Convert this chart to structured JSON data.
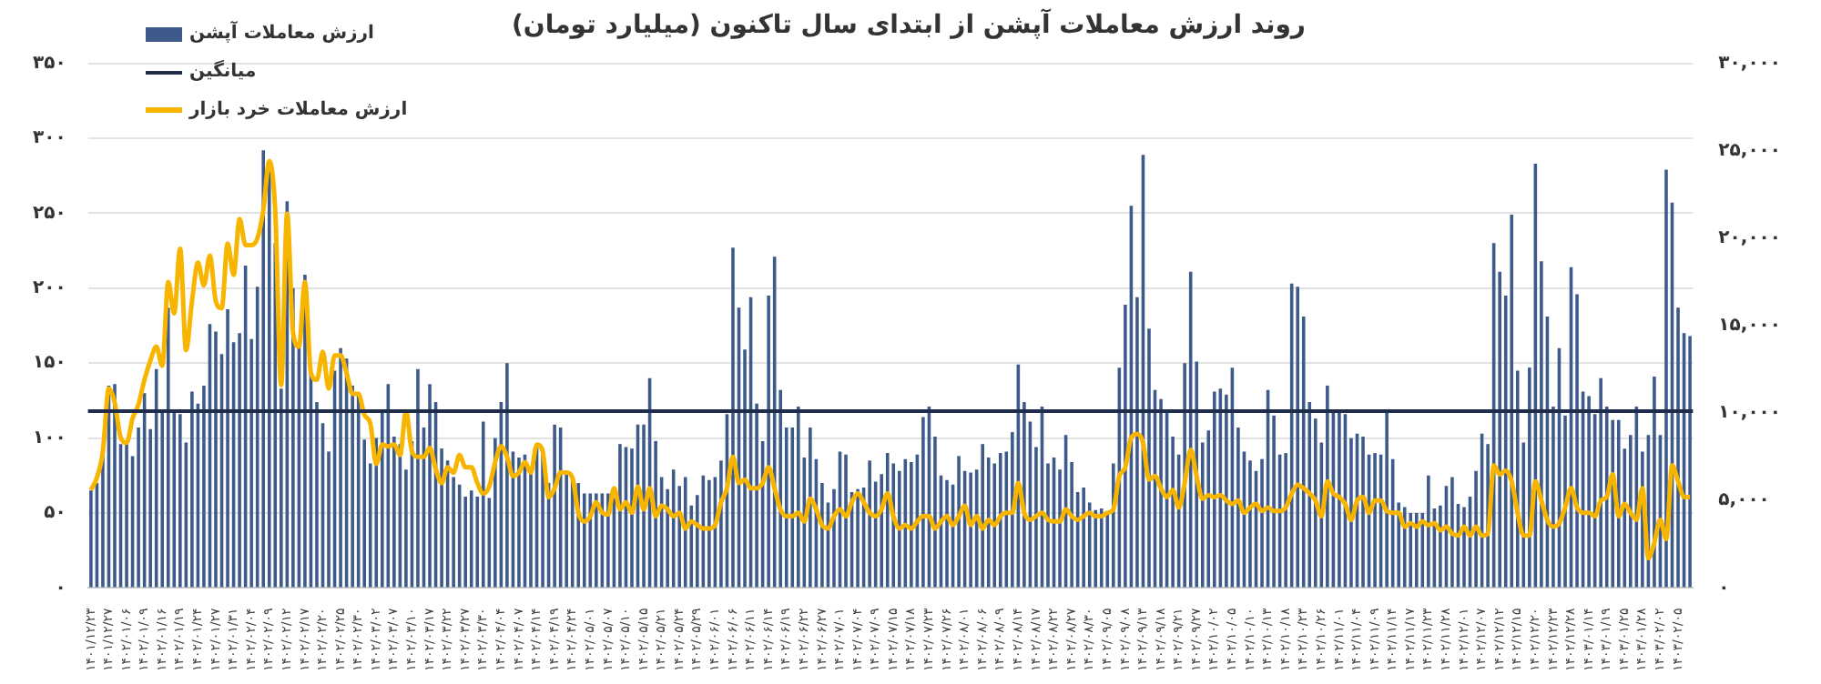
{
  "chart_data": {
    "type": "bar",
    "title": "روند ارزش معاملات آپشن از ابتدای سال تاکنون (میلیارد تومان)",
    "categories": [
      "۱۴۰۱/۱۲/۲۳",
      null,
      null,
      "۱۴۰۱/۱۲/۲۷",
      null,
      null,
      "۱۴۰۲/۰۱/۰۶",
      null,
      null,
      "۱۴۰۲/۰۱/۰۹",
      null,
      null,
      "۱۴۰۲/۰۱/۱۶",
      null,
      null,
      "۱۴۰۲/۰۱/۱۹",
      null,
      null,
      "۱۴۰۲/۰۱/۲۴",
      null,
      null,
      "۱۴۰۲/۰۱/۲۷",
      null,
      null,
      "۱۴۰۲/۰۱/۳۱",
      null,
      null,
      "۱۴۰۲/۰۲/۰۴",
      null,
      null,
      "۱۴۰۲/۰۲/۰۹",
      null,
      null,
      "۱۴۰۲/۰۲/۱۲",
      null,
      null,
      "۱۴۰۲/۰۲/۱۷",
      null,
      null,
      "۱۴۰۲/۰۲/۲۰",
      null,
      null,
      "۱۴۰۲/۰۲/۲۵",
      null,
      null,
      "۱۴۰۲/۰۲/۳۰",
      null,
      null,
      "۱۴۰۲/۰۳/۰۲",
      null,
      null,
      "۱۴۰۲/۰۳/۰۷",
      null,
      null,
      "۱۴۰۲/۰۳/۱۰",
      null,
      null,
      "۱۴۰۲/۰۳/۱۷",
      null,
      null,
      "۱۴۰۲/۰۳/۲۲",
      null,
      null,
      "۱۴۰۲/۰۳/۲۷",
      null,
      null,
      "۱۴۰۲/۰۳/۳۰",
      null,
      null,
      "۱۴۰۲/۰۴/۰۴",
      null,
      null,
      "۱۴۰۲/۰۴/۰۷",
      null,
      null,
      "۱۴۰۲/۰۴/۱۴",
      null,
      null,
      "۱۴۰۲/۰۴/۱۹",
      null,
      null,
      "۱۴۰۲/۰۴/۲۴",
      null,
      null,
      "۱۴۰۲/۰۵/۰۱",
      null,
      null,
      "۱۴۰۲/۰۵/۰۷",
      null,
      null,
      "۱۴۰۲/۰۵/۱۰",
      null,
      null,
      "۱۴۰۲/۰۵/۱۵",
      null,
      null,
      "۱۴۰۲/۰۵/۲۱",
      null,
      null,
      "۱۴۰۲/۰۵/۲۴",
      null,
      null,
      "۱۴۰۲/۰۵/۲۹",
      null,
      null,
      "۱۴۰۲/۰۶/۰۱",
      null,
      null,
      "۱۴۰۲/۰۶/۰۶",
      null,
      null,
      "۱۴۰۲/۰۶/۱۱",
      null,
      null,
      "۱۴۰۲/۰۶/۱۴",
      null,
      null,
      "۱۴۰۲/۰۶/۱۹",
      null,
      null,
      "۱۴۰۲/۰۶/۲۲",
      null,
      null,
      "۱۴۰۲/۰۶/۲۷",
      null,
      null,
      "۱۴۰۲/۰۷/۰۱",
      null,
      null,
      "۱۴۰۲/۰۷/۰۴",
      null,
      null,
      "۱۴۰۲/۰۷/۰۹",
      null,
      null,
      "۱۴۰۲/۰۷/۱۵",
      null,
      null,
      "۱۴۰۲/۰۷/۱۸",
      null,
      null,
      "۱۴۰۲/۰۷/۲۳",
      null,
      null,
      "۱۴۰۲/۰۷/۲۶",
      null,
      null,
      "۱۴۰۲/۰۸/۰۱",
      null,
      null,
      "۱۴۰۲/۰۸/۰۶",
      null,
      null,
      "۱۴۰۲/۰۸/۰۹",
      null,
      null,
      "۱۴۰۲/۰۸/۱۴",
      null,
      null,
      "۱۴۰۲/۰۸/۱۷",
      null,
      null,
      "۱۴۰۲/۰۸/۲۲",
      null,
      null,
      "۱۴۰۲/۰۸/۲۷",
      null,
      null,
      "۱۴۰۲/۰۸/۳۰",
      null,
      null,
      "۱۴۰۲/۰۹/۰۵",
      null,
      null,
      "۱۴۰۲/۰۹/۰۸",
      null,
      null,
      "۱۴۰۲/۰۹/۱۳",
      null,
      null,
      "۱۴۰۲/۰۹/۱۸",
      null,
      null,
      "۱۴۰۲/۰۹/۲۱",
      null,
      null,
      "۱۴۰۲/۰۹/۲۷",
      null,
      null,
      "۱۴۰۲/۱۰/۰۲",
      null,
      null,
      "۱۴۰۲/۱۰/۰۵",
      null,
      null,
      "۱۴۰۲/۱۰/۱۰",
      null,
      null,
      "۱۴۰۲/۱۰/۱۳",
      null,
      null,
      "۱۴۰۲/۱۰/۱۸",
      null,
      null,
      "۱۴۰۲/۱۰/۲۳",
      null,
      null,
      "۱۴۰۲/۱۰/۲۶",
      null,
      null,
      "۱۴۰۲/۱۱/۰۱",
      null,
      null,
      "۱۴۰۲/۱۱/۰۴",
      null,
      null,
      "۱۴۰۲/۱۱/۰۹",
      null,
      null,
      "۱۴۰۲/۱۱/۱۴",
      null,
      null,
      "۱۴۰۲/۱۱/۱۷",
      null,
      null,
      "۱۴۰۲/۱۱/۲۳",
      null,
      null,
      "۱۴۰۲/۱۱/۲۸",
      null,
      null,
      "۱۴۰۲/۱۲/۰۱",
      null,
      null,
      "۱۴۰۲/۱۲/۰۷",
      null,
      null,
      "۱۴۰۲/۱۲/۱۲",
      null,
      null,
      "۱۴۰۲/۱۲/۱۵",
      null,
      null,
      "۱۴۰۲/۱۲/۲۰",
      null,
      null,
      "۱۴۰۲/۱۲/۲۳",
      null,
      null,
      "۱۴۰۲/۱۲/۲۸",
      null,
      null,
      "۱۴۰۳/۰۱/۱۴",
      null,
      null,
      "۱۴۰۳/۰۱/۱۹",
      null,
      null,
      "۱۴۰۳/۰۱/۲۵",
      null,
      null,
      "۱۴۰۳/۰۱/۲۸",
      null,
      null,
      "۱۴۰۳/۰۲/۰۲",
      null,
      null,
      "۱۴۰۳/۰۲/۰۵",
      null,
      null
    ],
    "series": [
      {
        "name": "ارزش معاملات آپشن",
        "color": "#3d5a8a",
        "values": [
          65,
          70,
          91,
          135,
          136,
          96,
          96,
          88,
          107,
          130,
          106,
          146,
          118,
          187,
          117,
          116,
          97,
          131,
          123,
          135,
          176,
          171,
          156,
          186,
          164,
          170,
          215,
          166,
          201,
          292,
          278,
          230,
          133,
          258,
          200,
          163,
          209,
          143,
          124,
          110,
          91,
          145,
          160,
          153,
          135,
          130,
          99,
          83,
          100,
          117,
          136,
          101,
          96,
          79,
          98,
          146,
          107,
          136,
          124,
          93,
          85,
          74,
          69,
          61,
          65,
          61,
          111,
          60,
          100,
          124,
          150,
          91,
          87,
          89,
          78,
          96,
          93,
          70,
          109,
          107,
          78,
          74,
          70,
          63,
          63,
          63,
          63,
          63,
          60,
          96,
          94,
          93,
          109,
          109,
          140,
          98,
          74,
          66,
          79,
          68,
          74,
          55,
          62,
          75,
          72,
          74,
          85,
          116,
          227,
          187,
          159,
          194,
          123,
          98,
          195,
          221,
          132,
          107,
          107,
          121,
          87,
          107,
          86,
          70,
          57,
          66,
          91,
          89,
          64,
          66,
          67,
          85,
          71,
          76,
          90,
          83,
          78,
          86,
          84,
          89,
          114,
          121,
          101,
          75,
          72,
          69,
          88,
          78,
          77,
          79,
          96,
          87,
          83,
          90,
          91,
          104,
          149,
          124,
          111,
          94,
          121,
          83,
          87,
          79,
          102,
          84,
          64,
          67,
          57,
          52,
          53,
          49,
          83,
          147,
          189,
          255,
          194,
          289,
          173,
          132,
          126,
          118,
          101,
          89,
          150,
          211,
          151,
          97,
          105,
          131,
          133,
          129,
          147,
          107,
          91,
          85,
          78,
          86,
          132,
          115,
          89,
          90,
          203,
          201,
          181,
          124,
          113,
          97,
          135,
          118,
          118,
          116,
          100,
          103,
          101,
          89,
          90,
          89,
          118,
          86,
          57,
          54,
          50,
          50,
          50,
          75,
          53,
          55,
          68,
          74,
          56,
          54,
          61,
          78,
          103,
          96,
          230,
          211,
          195,
          249,
          145,
          97,
          147,
          283,
          218,
          181,
          121,
          160,
          115,
          214,
          196,
          131,
          128,
          116,
          140,
          121,
          112,
          112,
          93,
          102,
          121,
          91,
          102,
          141,
          102,
          279,
          257,
          187,
          170,
          168
        ]
      },
      {
        "name": "ارزش معاملات خرد بازار",
        "type": "line",
        "axis": "y2",
        "color": "#f7b500",
        "values": [
          5600,
          6300,
          7800,
          11400,
          10600,
          8600,
          8300,
          9700,
          10500,
          11900,
          13000,
          13800,
          12700,
          17500,
          15700,
          19400,
          13600,
          16400,
          18600,
          17300,
          19000,
          16400,
          16000,
          19700,
          17900,
          21100,
          19600,
          19600,
          20000,
          21600,
          24400,
          21600,
          11600,
          21400,
          14600,
          13800,
          17500,
          12300,
          11900,
          13500,
          11400,
          13300,
          13300,
          12300,
          11100,
          11100,
          9900,
          9400,
          7100,
          8200,
          8100,
          8200,
          7600,
          10100,
          7800,
          7500,
          7500,
          8000,
          6800,
          6000,
          6900,
          6600,
          7600,
          6900,
          6900,
          6000,
          5400,
          5800,
          7200,
          8100,
          7500,
          6400,
          6600,
          7200,
          6600,
          8200,
          7800,
          5200,
          5700,
          6600,
          6600,
          6300,
          4300,
          3800,
          4100,
          4900,
          4300,
          4200,
          5700,
          4500,
          4900,
          4300,
          5800,
          4500,
          5700,
          4100,
          4700,
          4500,
          4100,
          4300,
          3400,
          3800,
          3600,
          3400,
          3400,
          3600,
          4900,
          5700,
          7500,
          6000,
          6200,
          5700,
          5700,
          6000,
          6900,
          5700,
          4500,
          4100,
          4100,
          4300,
          3800,
          5100,
          4500,
          3600,
          3400,
          4100,
          4500,
          4100,
          4900,
          5400,
          4900,
          4300,
          4100,
          4500,
          5400,
          4100,
          3400,
          3600,
          3400,
          3800,
          4100,
          4100,
          3400,
          3800,
          4100,
          3600,
          4100,
          4700,
          3600,
          4100,
          3400,
          3900,
          3600,
          4100,
          4300,
          4300,
          6000,
          4300,
          3900,
          4100,
          4300,
          3900,
          3800,
          3800,
          4500,
          4100,
          3900,
          4100,
          4300,
          4100,
          4100,
          4300,
          4500,
          6400,
          6900,
          8600,
          8800,
          8300,
          6200,
          6400,
          5700,
          5200,
          5600,
          4600,
          6000,
          7900,
          6400,
          5100,
          5300,
          5200,
          5300,
          5000,
          4800,
          5000,
          4300,
          4600,
          4800,
          4400,
          4600,
          4400,
          4400,
          4600,
          5400,
          5900,
          5700,
          5400,
          5000,
          4100,
          6100,
          5400,
          5200,
          4800,
          3900,
          5000,
          5200,
          4300,
          5000,
          5000,
          4400,
          4300,
          4300,
          3500,
          3700,
          3500,
          3800,
          3600,
          3700,
          3300,
          3500,
          3100,
          3000,
          3500,
          3000,
          3500,
          3000,
          3100,
          7000,
          6500,
          6700,
          6100,
          4300,
          3000,
          3000,
          6100,
          5000,
          3900,
          3500,
          3700,
          4600,
          5700,
          4600,
          4300,
          4300,
          4100,
          5000,
          5200,
          6500,
          4100,
          4800,
          4300,
          3900,
          5700,
          1700,
          2600,
          3900,
          2800,
          7000,
          6100,
          5200,
          5200
        ]
      }
    ],
    "ylim": [
      0,
      350
    ],
    "yticks": [
      {
        "value": 0,
        "label": "۰"
      },
      {
        "value": 50,
        "label": "۵۰"
      },
      {
        "value": 100,
        "label": "۱۰۰"
      },
      {
        "value": 150,
        "label": "۱۵۰"
      },
      {
        "value": 200,
        "label": "۲۰۰"
      },
      {
        "value": 250,
        "label": "۲۵۰"
      },
      {
        "value": 300,
        "label": "۳۰۰"
      },
      {
        "value": 350,
        "label": "۳۵۰"
      }
    ],
    "y2lim": [
      0,
      30000
    ],
    "y2ticks": [
      {
        "value": 0,
        "label": "۰"
      },
      {
        "value": 5000,
        "label": "۵,۰۰۰"
      },
      {
        "value": 10000,
        "label": "۱۰,۰۰۰"
      },
      {
        "value": 15000,
        "label": "۱۵,۰۰۰"
      },
      {
        "value": 20000,
        "label": "۲۰,۰۰۰"
      },
      {
        "value": 25000,
        "label": "۲۵,۰۰۰"
      },
      {
        "value": 30000,
        "label": "۳۰,۰۰۰"
      }
    ],
    "ref_lines": [
      {
        "axis": "y",
        "value": 118,
        "label": "میانگین",
        "color": "#1f2d4a"
      }
    ],
    "grid": "y",
    "legend": "top left",
    "marker": "none"
  }
}
